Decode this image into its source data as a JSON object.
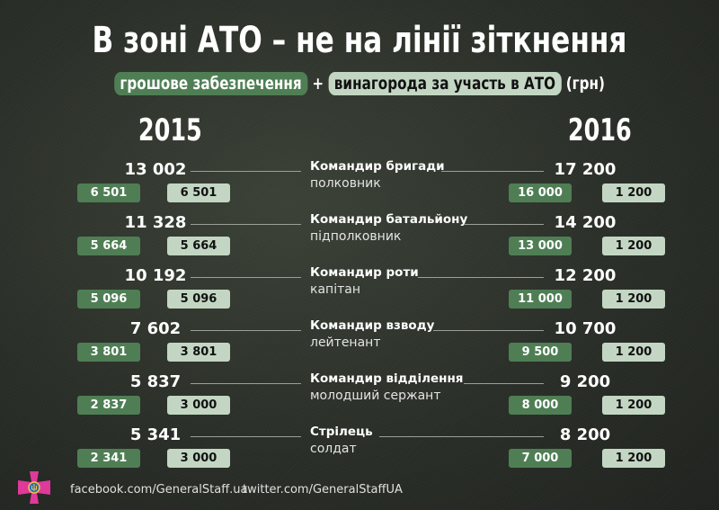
{
  "title": "В зоні АТО – не на лінії зіткнення",
  "subtitle": {
    "part1": "грошове забезпечення",
    "plus": "+",
    "part2": "винагорода за участь в АТО",
    "unit": "(грн)"
  },
  "years": {
    "left": "2015",
    "right": "2016"
  },
  "colors": {
    "green": "#4f7e55",
    "light": "#c3d6c3"
  },
  "rows": [
    {
      "position": "Командир бригади",
      "rank": "полковник",
      "total_2015": "13 002",
      "pay_2015": "6 501",
      "bonus_2015": "6 501",
      "total_2016": "17 200",
      "pay_2016": "16 000",
      "bonus_2016": "1 200"
    },
    {
      "position": "Командир батальйону",
      "rank": "підполковник",
      "total_2015": "11 328",
      "pay_2015": "5 664",
      "bonus_2015": "5 664",
      "total_2016": "14 200",
      "pay_2016": "13 000",
      "bonus_2016": "1 200"
    },
    {
      "position": "Командир роти",
      "rank": "капітан",
      "total_2015": "10 192",
      "pay_2015": "5 096",
      "bonus_2015": "5 096",
      "total_2016": "12 200",
      "pay_2016": "11 000",
      "bonus_2016": "1 200"
    },
    {
      "position": "Командир взводу",
      "rank": "лейтенант",
      "total_2015": "7 602",
      "pay_2015": "3 801",
      "bonus_2015": "3 801",
      "total_2016": "10 700",
      "pay_2016": "9 500",
      "bonus_2016": "1 200"
    },
    {
      "position": "Командир відділення",
      "rank": "молодший сержант",
      "total_2015": "5 837",
      "pay_2015": "2 837",
      "bonus_2015": "3 000",
      "total_2016": "9 200",
      "pay_2016": "8 000",
      "bonus_2016": "1 200"
    },
    {
      "position": "Стрілець",
      "rank": "солдат",
      "total_2015": "5 341",
      "pay_2015": "2 341",
      "bonus_2015": "3 000",
      "total_2016": "8 200",
      "pay_2016": "7 000",
      "bonus_2016": "1 200"
    }
  ],
  "footer": {
    "facebook": "facebook.com/GeneralStaff.ua",
    "twitter": "twitter.com/GeneralStaffUA",
    "emblem_icon": "general-staff-cross-emblem"
  }
}
